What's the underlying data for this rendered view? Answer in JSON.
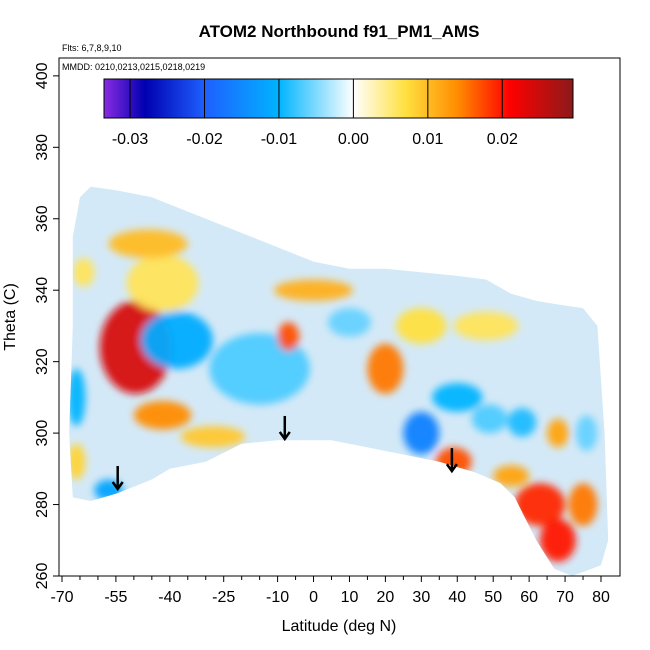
{
  "chart_data": {
    "type": "heatmap",
    "title": "ATOM2 Northbound f91_PM1_AMS",
    "flights_note": "Flts: 6,7,8,9,10",
    "dates_note": "MMDD: 0210,0213,0215,0218,0219",
    "xlabel": "Latitude (deg N)",
    "ylabel": "Theta (C)",
    "xlim": [
      -70,
      82
    ],
    "ylim": [
      260,
      405
    ],
    "x_ticks": [
      -70,
      -55,
      -40,
      -25,
      -10,
      0,
      10,
      20,
      30,
      40,
      50,
      60,
      70,
      80
    ],
    "x_tick_labels": [
      "-70",
      "-55",
      "-40",
      "-25",
      "-10",
      "0",
      "10",
      "20",
      "30",
      "40",
      "50",
      "60",
      "70",
      "80"
    ],
    "x_minor_ticks": [
      -65,
      -60,
      -50,
      -45,
      -35,
      -30,
      -20,
      -15,
      -5,
      5,
      15,
      25,
      35,
      45,
      55,
      65,
      75
    ],
    "y_ticks": [
      260,
      280,
      300,
      320,
      340,
      360,
      380,
      400
    ],
    "y_tick_labels": [
      "260",
      "280",
      "300",
      "320",
      "340",
      "360",
      "380",
      "400"
    ],
    "colorbar": {
      "range": [
        -0.0335,
        0.0295
      ],
      "ticks": [
        -0.03,
        -0.02,
        -0.01,
        0.0,
        0.01,
        0.02
      ],
      "tick_labels": [
        "-0.03",
        "-0.02",
        "-0.01",
        "0.00",
        "0.01",
        "0.02"
      ],
      "colors": [
        "#8a2be2",
        "#0000b0",
        "#1e5fff",
        "#00b4ff",
        "#ffffff",
        "#ffe040",
        "#ff8c00",
        "#ff0000",
        "#8b1a1a"
      ],
      "stops": [
        -0.0335,
        -0.028,
        -0.02,
        -0.01,
        0.0,
        0.007,
        0.014,
        0.021,
        0.0295
      ]
    },
    "coverage_outline": [
      [
        -67,
        282
      ],
      [
        -62,
        281
      ],
      [
        -55,
        283
      ],
      [
        -50,
        285
      ],
      [
        -45,
        287
      ],
      [
        -40,
        290
      ],
      [
        -30,
        292
      ],
      [
        -20,
        297
      ],
      [
        -10,
        298
      ],
      [
        5,
        298
      ],
      [
        15,
        296
      ],
      [
        25,
        294
      ],
      [
        35,
        292
      ],
      [
        45,
        289
      ],
      [
        52,
        286
      ],
      [
        56,
        282
      ],
      [
        62,
        270
      ],
      [
        67,
        262
      ],
      [
        72,
        260
      ],
      [
        80,
        263
      ],
      [
        82,
        270
      ],
      [
        81,
        300
      ],
      [
        79,
        330
      ],
      [
        75,
        335
      ],
      [
        68,
        336
      ],
      [
        62,
        337
      ],
      [
        55,
        339
      ],
      [
        48,
        343
      ],
      [
        40,
        344
      ],
      [
        30,
        345
      ],
      [
        20,
        346
      ],
      [
        10,
        346
      ],
      [
        0,
        348
      ],
      [
        -10,
        352
      ],
      [
        -20,
        356
      ],
      [
        -35,
        362
      ],
      [
        -45,
        366
      ],
      [
        -55,
        368
      ],
      [
        -62,
        369
      ],
      [
        -65,
        366
      ],
      [
        -67,
        355
      ],
      [
        -67,
        330
      ],
      [
        -68,
        300
      ],
      [
        -67,
        282
      ]
    ],
    "blobs": [
      {
        "lat": -49.5,
        "theta": 324,
        "value": 0.024,
        "rx": 10,
        "ry": 13
      },
      {
        "lat": -42,
        "theta": 305,
        "value": 0.014,
        "rx": 8,
        "ry": 4
      },
      {
        "lat": -28,
        "theta": 299,
        "value": 0.009,
        "rx": 9,
        "ry": 3
      },
      {
        "lat": -42,
        "theta": 342,
        "value": 0.006,
        "rx": 10,
        "ry": 8
      },
      {
        "lat": -46,
        "theta": 353,
        "value": 0.01,
        "rx": 11,
        "ry": 4
      },
      {
        "lat": -38,
        "theta": 326,
        "value": -0.011,
        "rx": 10,
        "ry": 8
      },
      {
        "lat": -15,
        "theta": 318,
        "value": -0.007,
        "rx": 14,
        "ry": 10
      },
      {
        "lat": -64,
        "theta": 345,
        "value": 0.006,
        "rx": 3,
        "ry": 4
      },
      {
        "lat": -66,
        "theta": 292,
        "value": 0.008,
        "rx": 2.5,
        "ry": 5
      },
      {
        "lat": -66,
        "theta": 310,
        "value": -0.01,
        "rx": 2.5,
        "ry": 8
      },
      {
        "lat": -57,
        "theta": 284,
        "value": -0.012,
        "rx": 4,
        "ry": 3
      },
      {
        "lat": 0,
        "theta": 340,
        "value": 0.011,
        "rx": 11,
        "ry": 3
      },
      {
        "lat": -7,
        "theta": 327,
        "value": 0.017,
        "rx": 3,
        "ry": 4
      },
      {
        "lat": 10,
        "theta": 331,
        "value": -0.006,
        "rx": 6,
        "ry": 4
      },
      {
        "lat": 20,
        "theta": 318,
        "value": 0.015,
        "rx": 5,
        "ry": 7
      },
      {
        "lat": 30,
        "theta": 300,
        "value": -0.016,
        "rx": 5,
        "ry": 6
      },
      {
        "lat": 39,
        "theta": 292,
        "value": 0.017,
        "rx": 5,
        "ry": 4
      },
      {
        "lat": 40,
        "theta": 310,
        "value": -0.01,
        "rx": 7,
        "ry": 4
      },
      {
        "lat": 49,
        "theta": 304,
        "value": -0.007,
        "rx": 5,
        "ry": 4
      },
      {
        "lat": 48,
        "theta": 330,
        "value": 0.006,
        "rx": 9,
        "ry": 4
      },
      {
        "lat": 58,
        "theta": 303,
        "value": -0.009,
        "rx": 4,
        "ry": 4
      },
      {
        "lat": 68,
        "theta": 300,
        "value": 0.012,
        "rx": 3,
        "ry": 4
      },
      {
        "lat": 63,
        "theta": 280,
        "value": 0.019,
        "rx": 7,
        "ry": 6
      },
      {
        "lat": 68,
        "theta": 270,
        "value": 0.02,
        "rx": 5,
        "ry": 6
      },
      {
        "lat": 55,
        "theta": 288,
        "value": 0.012,
        "rx": 5,
        "ry": 3
      },
      {
        "lat": 75,
        "theta": 280,
        "value": 0.015,
        "rx": 4,
        "ry": 6
      },
      {
        "lat": 76,
        "theta": 300,
        "value": -0.006,
        "rx": 3,
        "ry": 5
      },
      {
        "lat": 30,
        "theta": 330,
        "value": 0.007,
        "rx": 7,
        "ry": 5
      }
    ],
    "arrows": [
      {
        "lat": -54.5,
        "theta": 288,
        "label_direction": "down"
      },
      {
        "lat": -8,
        "theta": 302,
        "label_direction": "down"
      },
      {
        "lat": 38.5,
        "theta": 293,
        "label_direction": "down"
      }
    ],
    "grid": false,
    "legend_position": "top (horizontal color bar)"
  }
}
